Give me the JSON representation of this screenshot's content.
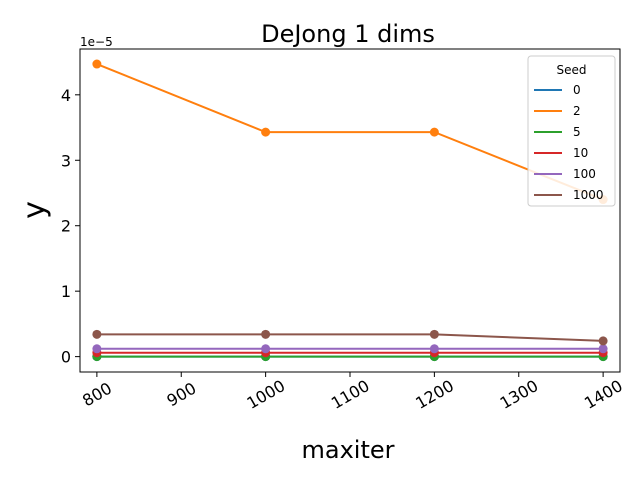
{
  "chart_data": {
    "type": "line",
    "title": "DeJong 1 dims",
    "xlabel": "maxiter",
    "ylabel": "y",
    "y_multiplier_label": "1e−5",
    "x": [
      800,
      1000,
      1200,
      1400
    ],
    "xlim": [
      780,
      1420
    ],
    "ylim": [
      -0.235,
      4.7
    ],
    "x_ticks": [
      800,
      900,
      1000,
      1100,
      1200,
      1300,
      1400
    ],
    "y_ticks": [
      0,
      1,
      2,
      3,
      4
    ],
    "y_unit_note": "values in units of 1e-5",
    "legend": {
      "title": "Seed",
      "position": "top-right"
    },
    "series": [
      {
        "name": "0",
        "color": "#1f77b4",
        "values": [
          0.0,
          0.0,
          0.0,
          0.0
        ]
      },
      {
        "name": "2",
        "color": "#ff7f0e",
        "values": [
          4.47,
          3.43,
          3.43,
          2.4
        ]
      },
      {
        "name": "5",
        "color": "#2ca02c",
        "values": [
          0.0,
          0.0,
          0.0,
          0.0
        ]
      },
      {
        "name": "10",
        "color": "#d62728",
        "values": [
          0.06,
          0.06,
          0.06,
          0.06
        ]
      },
      {
        "name": "100",
        "color": "#9467bd",
        "values": [
          0.12,
          0.12,
          0.12,
          0.12
        ]
      },
      {
        "name": "1000",
        "color": "#8c564b",
        "values": [
          0.34,
          0.34,
          0.34,
          0.24
        ]
      }
    ],
    "grid": false
  }
}
